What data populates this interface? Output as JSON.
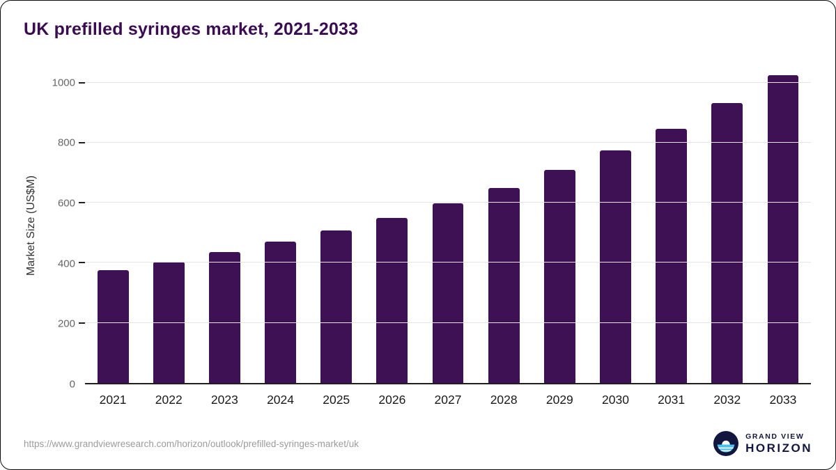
{
  "page": {
    "title": "UK prefilled syringes market, 2021-2033",
    "source_url": "https://www.grandviewresearch.com/horizon/outlook/prefilled-syringes-market/uk"
  },
  "branding": {
    "line1": "GRAND VIEW",
    "line2": "HORIZON",
    "icon": "horizon-sunset-circle-icon"
  },
  "colors": {
    "bar": "#3E1054",
    "title": "#3A0C52",
    "axis": "#1f1f1f",
    "grid": "#e5e5e5",
    "ytick": "#666666",
    "xtick": "#1a1a1a",
    "url": "#9b9b9b",
    "logo_navy": "#13173f",
    "logo_blue": "#47c3f2"
  },
  "chart_data": {
    "type": "bar",
    "title": "UK prefilled syringes market, 2021-2033",
    "categories": [
      "2021",
      "2022",
      "2023",
      "2024",
      "2025",
      "2026",
      "2027",
      "2028",
      "2029",
      "2030",
      "2031",
      "2032",
      "2033"
    ],
    "values": [
      376,
      404,
      436,
      470,
      507,
      550,
      597,
      650,
      710,
      775,
      847,
      931,
      1024
    ],
    "xlabel": "",
    "ylabel": "Market Size (US$M)",
    "ylim": [
      0,
      1050
    ],
    "yticks": [
      0,
      200,
      400,
      600,
      800,
      1000
    ],
    "grid": "horizontal",
    "legend": "none",
    "bar_color": "#3E1054"
  }
}
